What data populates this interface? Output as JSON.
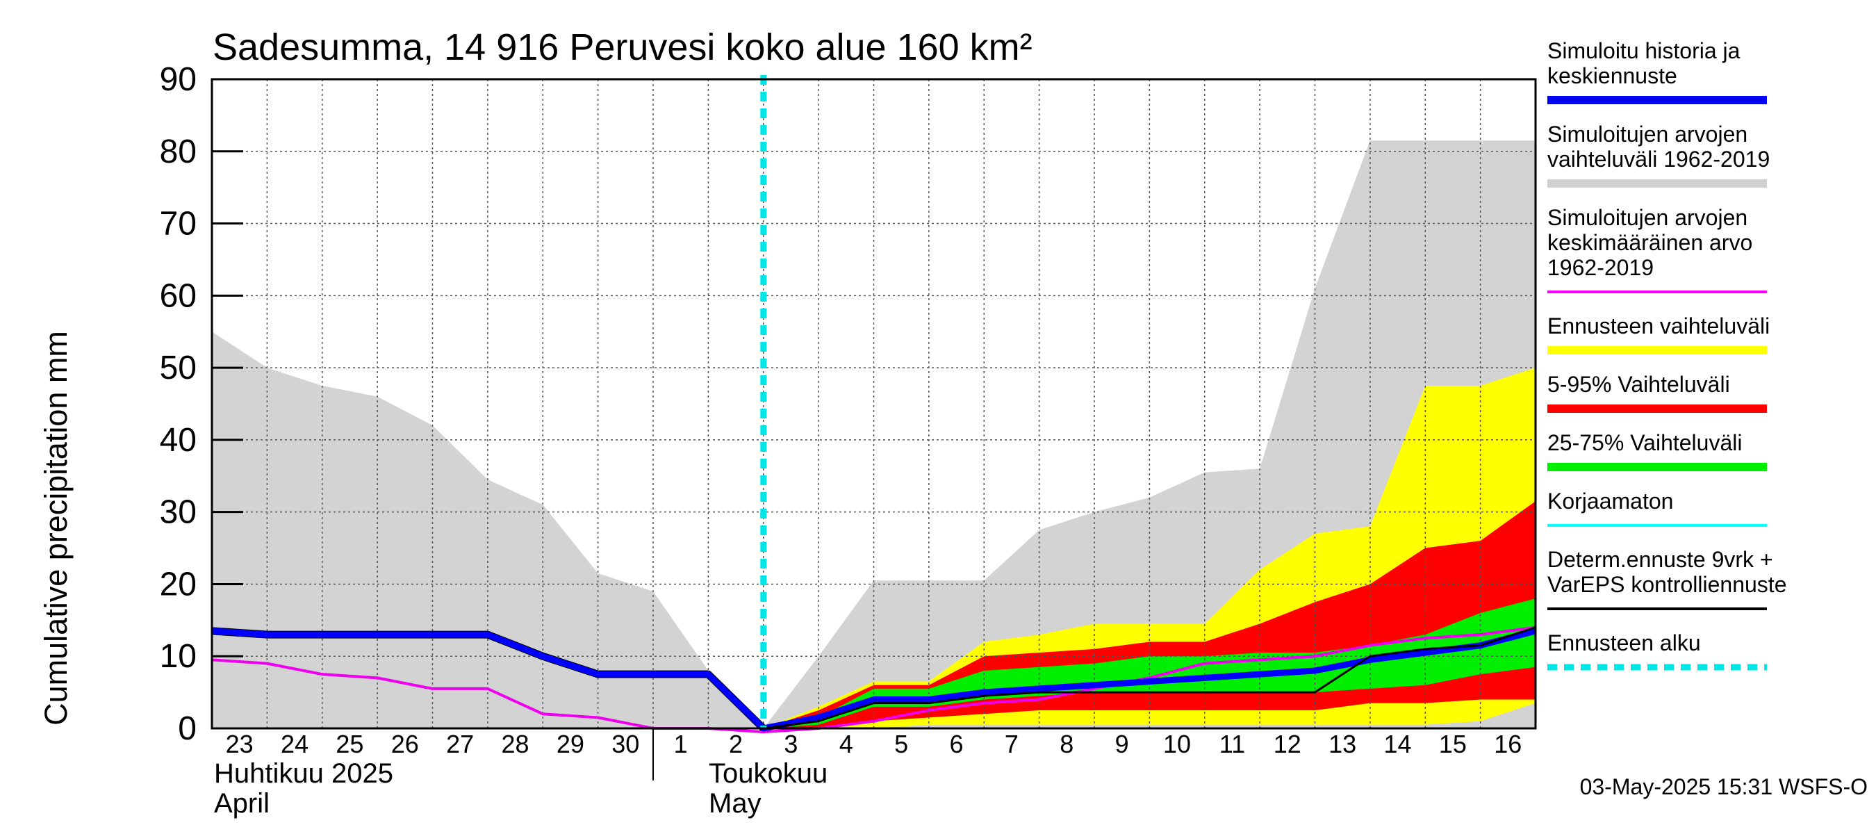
{
  "chart_data": {
    "type": "area",
    "title": "Sadesumma, 14 916 Peruvesi koko alue 160 km²",
    "ylabel": "Cumulative precipitation   mm",
    "ylim": [
      0,
      90
    ],
    "yticks": [
      0,
      10,
      20,
      30,
      40,
      50,
      60,
      70,
      80,
      90
    ],
    "x_days": [
      "23",
      "24",
      "25",
      "26",
      "27",
      "28",
      "29",
      "30",
      "1",
      "2",
      "3",
      "4",
      "5",
      "6",
      "7",
      "8",
      "9",
      "10",
      "11",
      "12",
      "13",
      "14",
      "15",
      "16"
    ],
    "x_start_index": 0,
    "x_end_index": 24,
    "month_labels": {
      "april_fi": "Huhtikuu  2025",
      "april_en": "April",
      "may_fi": "Toukokuu",
      "may_en": "May"
    },
    "forecast_start_index": 10.0,
    "grid": true,
    "series": {
      "hist_range_upper": {
        "x": [
          0,
          1,
          2,
          3,
          4,
          5,
          6,
          7,
          8,
          9,
          10,
          11,
          12,
          13,
          14,
          15,
          16,
          17,
          18,
          19,
          20,
          21,
          22,
          23,
          24
        ],
        "values": [
          55,
          50,
          47.5,
          46,
          42,
          34.5,
          31,
          21.5,
          19,
          8,
          0,
          10,
          20.5,
          20.5,
          20.5,
          27.5,
          30,
          32,
          35.5,
          36,
          61,
          81.5,
          81.5,
          81.5,
          81.5
        ]
      },
      "hist_range_lower": {
        "x": [
          0,
          24
        ],
        "values": [
          0,
          0
        ]
      },
      "ensemble_range_upper": {
        "x": [
          10,
          11,
          12,
          13,
          14,
          15,
          16,
          17,
          18,
          19,
          20,
          21,
          22,
          23,
          24
        ],
        "values": [
          0,
          3,
          6.5,
          6.5,
          12,
          13,
          14.5,
          14.5,
          14.5,
          22,
          27,
          28,
          47.5,
          47.5,
          50
        ]
      },
      "ensemble_range_lower": {
        "x": [
          10,
          11,
          12,
          13,
          14,
          15,
          16,
          17,
          18,
          19,
          20,
          21,
          22,
          23,
          24
        ],
        "values": [
          0,
          0,
          0,
          0.5,
          0.5,
          0.5,
          0.5,
          0.5,
          0.5,
          0.5,
          0.5,
          0.5,
          0.5,
          1,
          3.5
        ]
      },
      "p5_95_upper": {
        "x": [
          10,
          11,
          12,
          13,
          14,
          15,
          16,
          17,
          18,
          19,
          20,
          21,
          22,
          23,
          24
        ],
        "values": [
          0,
          2.5,
          6,
          6,
          10,
          10.5,
          11,
          12,
          12,
          14.5,
          17.5,
          20,
          25,
          26,
          31.5
        ]
      },
      "p5_95_lower": {
        "x": [
          10,
          11,
          12,
          13,
          14,
          15,
          16,
          17,
          18,
          19,
          20,
          21,
          22,
          23,
          24
        ],
        "values": [
          0,
          0,
          1,
          1.5,
          2,
          2.5,
          2.5,
          2.5,
          2.5,
          2.5,
          2.5,
          3.5,
          3.5,
          4,
          4
        ]
      },
      "p25_75_upper": {
        "x": [
          10,
          11,
          12,
          13,
          14,
          15,
          16,
          17,
          18,
          19,
          20,
          21,
          22,
          23,
          24
        ],
        "values": [
          0,
          1.5,
          5.5,
          5.5,
          8,
          8.5,
          9,
          10,
          10,
          10.5,
          10.5,
          11.5,
          13,
          16,
          18
        ]
      },
      "p25_75_lower": {
        "x": [
          10,
          11,
          12,
          13,
          14,
          15,
          16,
          17,
          18,
          19,
          20,
          21,
          22,
          23,
          24
        ],
        "values": [
          0,
          0.5,
          3,
          3,
          4,
          4.5,
          5,
          5,
          5,
          5,
          5,
          5.5,
          6,
          7.5,
          8.5
        ]
      },
      "mean_1962_2019": {
        "x": [
          0,
          1,
          2,
          3,
          4,
          5,
          6,
          7,
          8,
          9,
          10,
          11,
          12,
          13,
          14,
          15,
          16,
          17,
          18,
          19,
          20,
          21,
          22,
          23,
          24
        ],
        "values": [
          9.5,
          9,
          7.5,
          7,
          5.5,
          5.5,
          2,
          1.5,
          0,
          0,
          -0.5,
          0,
          1,
          2.5,
          3.5,
          4,
          5.5,
          7,
          9,
          9.5,
          10,
          11.5,
          12.5,
          13,
          14
        ]
      },
      "korjaamaton": {
        "x": [
          0,
          1,
          2,
          3,
          4,
          5,
          6,
          7,
          8,
          9,
          10
        ],
        "values": [
          13.5,
          13,
          13,
          13,
          13,
          13,
          10,
          7.5,
          7.5,
          7.5,
          0
        ]
      },
      "simulated_history": {
        "x": [
          0,
          1,
          2,
          3,
          4,
          5,
          6,
          7,
          8,
          9,
          10,
          11,
          12,
          13,
          14,
          15,
          16,
          17,
          18,
          19,
          20,
          21,
          22,
          23,
          24
        ],
        "values": [
          13.5,
          13,
          13,
          13,
          13,
          13,
          10,
          7.5,
          7.5,
          7.5,
          0,
          1.5,
          4,
          4,
          5,
          5.5,
          6,
          6.5,
          7,
          7.5,
          8,
          9.5,
          10.5,
          11.5,
          13.5
        ]
      },
      "determ_forecast": {
        "x": [
          10,
          11,
          12,
          13,
          14,
          15,
          16,
          17,
          18,
          19,
          20,
          21,
          22,
          23,
          24
        ],
        "values": [
          0,
          1,
          3.5,
          3.5,
          4.5,
          5,
          5,
          5,
          5,
          5,
          5,
          10,
          11,
          11.5,
          14
        ]
      }
    },
    "legend": [
      {
        "label_lines": [
          "Simuloitu historia ja",
          "keskiennuste"
        ],
        "color": "#0000ff",
        "style": "thick"
      },
      {
        "label_lines": [
          "Simuloitujen arvojen",
          "vaihteluväli 1962-2019"
        ],
        "color": "#d0d0d0",
        "style": "thick"
      },
      {
        "label_lines": [
          "Simuloitujen arvojen",
          "keskimääräinen arvo",
          "   1962-2019"
        ],
        "color": "#ff00ff",
        "style": "thin"
      },
      {
        "label_lines": [
          "Ennusteen vaihteluväli"
        ],
        "color": "#ffff00",
        "style": "thick"
      },
      {
        "label_lines": [
          "5-95% Vaihteluväli"
        ],
        "color": "#ff0000",
        "style": "thick"
      },
      {
        "label_lines": [
          "25-75% Vaihteluväli"
        ],
        "color": "#00ee00",
        "style": "thick"
      },
      {
        "label_lines": [
          "Korjaamaton"
        ],
        "color": "#00ffff",
        "style": "thin"
      },
      {
        "label_lines": [
          "Determ.ennuste 9vrk +",
          "VarEPS kontrolliennuste"
        ],
        "color": "#000000",
        "style": "thin"
      },
      {
        "label_lines": [
          "Ennusteen alku"
        ],
        "color": "#00e5e5",
        "style": "dashed"
      }
    ],
    "footer": "03-May-2025 15:31 WSFS-O"
  },
  "colors": {
    "hist_range": "#d3d3d3",
    "ensemble_range": "#ffff00",
    "p5_95": "#ff0000",
    "p25_75": "#00ee00",
    "mean": "#ee00ee",
    "korjaamaton": "#00ffff",
    "simulated": "#0000ff",
    "determ": "#000000",
    "forecast_start": "#00e5e5",
    "grid": "#555555"
  }
}
